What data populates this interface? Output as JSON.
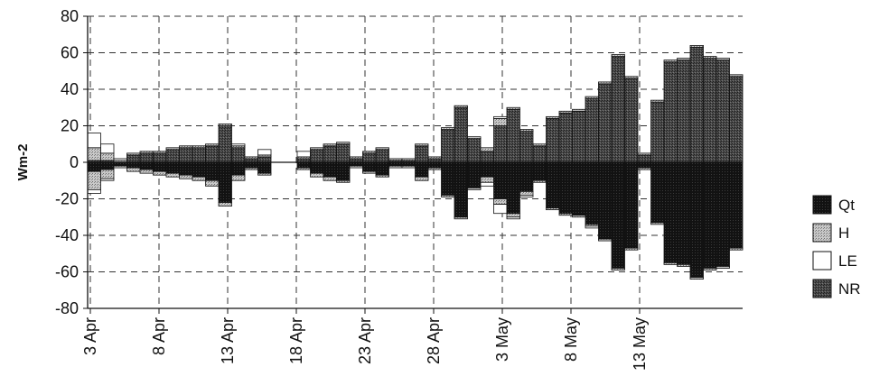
{
  "chart_data": {
    "type": "bar",
    "title": "",
    "xlabel": "",
    "ylabel": "Wm-2",
    "ylim": [
      -80,
      80
    ],
    "yticks": [
      80,
      60,
      40,
      20,
      0,
      -20,
      -40,
      -60,
      -80
    ],
    "ytick_labels": [
      "80",
      "60",
      "40",
      "20",
      "0",
      "-20",
      "-40",
      "-60",
      "-80"
    ],
    "xtick_labels": [
      "3 Apr",
      "8 Apr",
      "13 Apr",
      "18 Apr",
      "23 Apr",
      "28 Apr",
      "3 May",
      "8 May",
      "13 May"
    ],
    "grid": true,
    "legend_position": "right",
    "series": [
      {
        "name": "Qt",
        "fill": "#151515",
        "pattern": "dark",
        "values": [
          -5,
          -4,
          -2,
          -3,
          -4,
          -5,
          -6,
          -7,
          -8,
          -10,
          -22,
          -7,
          -3,
          -6,
          0,
          0,
          -3,
          -6,
          -8,
          -10,
          -2,
          -5,
          -7,
          -2,
          -2,
          -8,
          -3,
          -18,
          -30,
          -14,
          -8,
          -20,
          -28,
          -16,
          -10,
          -25,
          -28,
          -29,
          -34,
          -42,
          -58,
          -47,
          -3,
          -33,
          -55,
          -56,
          -63,
          -58,
          -57,
          -47
        ]
      },
      {
        "name": "H",
        "fill": "#b7b7b7",
        "pattern": "dotted",
        "values": [
          -10,
          -5,
          -1,
          -2,
          -2,
          -2,
          -2,
          -2,
          -2,
          -3,
          -2,
          -3,
          -1,
          -1,
          0,
          0,
          -1,
          -2,
          -2,
          -1,
          -1,
          -1,
          -1,
          -1,
          -1,
          -2,
          -1,
          -1,
          -1,
          -1,
          -3,
          -3,
          -2,
          -2,
          -1,
          -1,
          -1,
          -1,
          -1,
          -1,
          -1,
          -1,
          -1,
          -1,
          -1,
          -1,
          -1,
          -1,
          -1,
          -1
        ]
      },
      {
        "name": "LE",
        "fill": "#ffffff",
        "pattern": "open",
        "values": [
          -2,
          -1,
          0,
          0,
          0,
          0,
          0,
          0,
          0,
          0,
          0,
          0,
          0,
          0,
          0,
          0,
          0,
          0,
          0,
          0,
          0,
          0,
          0,
          0,
          0,
          0,
          0,
          0,
          0,
          0,
          -2,
          -5,
          -1,
          -1,
          0,
          0,
          0,
          0,
          -1,
          0,
          0,
          0,
          0,
          0,
          0,
          0,
          0,
          0,
          0,
          0
        ]
      },
      {
        "name": "NR",
        "fill": "#3a3a3a",
        "pattern": "hatched",
        "values": [
          7,
          3,
          2,
          4,
          5,
          5,
          7,
          8,
          8,
          9,
          20,
          8,
          2,
          3,
          0,
          0,
          2,
          7,
          9,
          10,
          2,
          5,
          7,
          1,
          1,
          9,
          2,
          18,
          30,
          13,
          6,
          22,
          30,
          17,
          9,
          25,
          28,
          29,
          36,
          43,
          59,
          47,
          5,
          34,
          55,
          56,
          64,
          58,
          57,
          47
        ]
      }
    ],
    "positive_stack": [
      {
        "name": "NR",
        "values": [
          1,
          1,
          0,
          4,
          5,
          5,
          7,
          8,
          8,
          9,
          20,
          8,
          2,
          3,
          0,
          0,
          2,
          7,
          9,
          10,
          2,
          5,
          7,
          1,
          1,
          9,
          2,
          18,
          30,
          13,
          6,
          20,
          29,
          17,
          9,
          24,
          27,
          28,
          35,
          43,
          58,
          46,
          4,
          33,
          55,
          56,
          63,
          57,
          56,
          47
        ]
      },
      {
        "name": "H",
        "values": [
          7,
          4,
          1,
          1,
          1,
          1,
          1,
          1,
          1,
          1,
          1,
          1,
          1,
          1,
          0,
          0,
          1,
          1,
          1,
          1,
          1,
          1,
          1,
          1,
          1,
          1,
          1,
          1,
          1,
          1,
          2,
          4,
          1,
          1,
          1,
          1,
          1,
          1,
          1,
          1,
          1,
          1,
          1,
          1,
          1,
          1,
          1,
          1,
          1,
          1
        ]
      },
      {
        "name": "LE",
        "values": [
          8,
          5,
          1,
          0,
          0,
          0,
          0,
          0,
          0,
          0,
          0,
          1,
          0,
          3,
          0,
          0,
          3,
          0,
          0,
          0,
          0,
          0,
          0,
          0,
          0,
          0,
          0,
          0,
          0,
          0,
          0,
          1,
          0,
          0,
          0,
          0,
          0,
          0,
          0,
          0,
          0,
          0,
          0,
          0,
          0,
          0,
          0,
          0,
          0,
          0
        ]
      }
    ]
  }
}
